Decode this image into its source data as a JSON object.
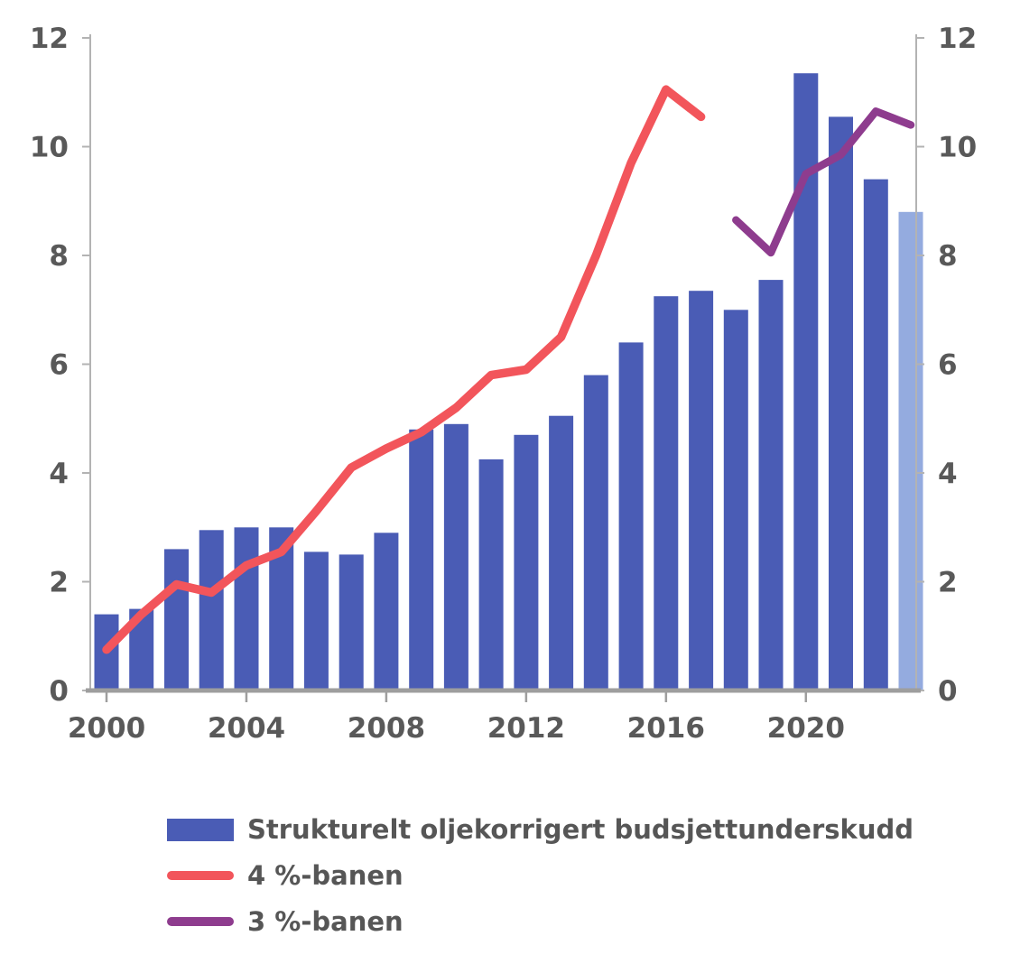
{
  "chart_data": {
    "type": "bar+line",
    "categories": [
      2000,
      2001,
      2002,
      2003,
      2004,
      2005,
      2006,
      2007,
      2008,
      2009,
      2010,
      2011,
      2012,
      2013,
      2014,
      2015,
      2016,
      2017,
      2018,
      2019,
      2020,
      2021,
      2022,
      2023
    ],
    "series": [
      {
        "name": "Strukturelt oljekorrigert budsjettunderskudd",
        "type": "bar",
        "color": "#4a5cb5",
        "last_color": "#94abdf",
        "values": [
          1.4,
          1.5,
          2.6,
          2.95,
          3.0,
          3.0,
          2.55,
          2.5,
          2.9,
          4.8,
          4.9,
          4.25,
          4.7,
          5.05,
          5.8,
          6.4,
          7.25,
          7.35,
          7.0,
          7.55,
          11.35,
          10.55,
          9.4,
          8.8
        ]
      },
      {
        "name": "4 %-banen",
        "type": "line",
        "color": "#f2555b",
        "values": [
          0.75,
          1.4,
          1.95,
          1.8,
          2.3,
          2.55,
          3.3,
          4.1,
          4.45,
          4.75,
          5.2,
          5.8,
          5.9,
          6.5,
          8.0,
          9.7,
          11.05,
          10.55,
          null,
          null,
          null,
          null,
          null,
          null
        ]
      },
      {
        "name": "3 %-banen",
        "type": "line",
        "color": "#8e3c8e",
        "values": [
          null,
          null,
          null,
          null,
          null,
          null,
          null,
          null,
          null,
          null,
          null,
          null,
          null,
          null,
          null,
          null,
          null,
          null,
          8.65,
          8.05,
          9.5,
          9.85,
          10.65,
          10.4
        ]
      }
    ],
    "ylim": [
      0,
      12
    ],
    "yticks": [
      0,
      2,
      4,
      6,
      8,
      10,
      12
    ],
    "xticks": [
      2000,
      2004,
      2008,
      2012,
      2016,
      2020
    ],
    "grid": false,
    "axes": "left+right+bottom",
    "legend_position": "bottom-left",
    "axis_color": "#b3b3b3",
    "baseline_color": "#9e9e9e",
    "tick_text_color": "#595959"
  }
}
